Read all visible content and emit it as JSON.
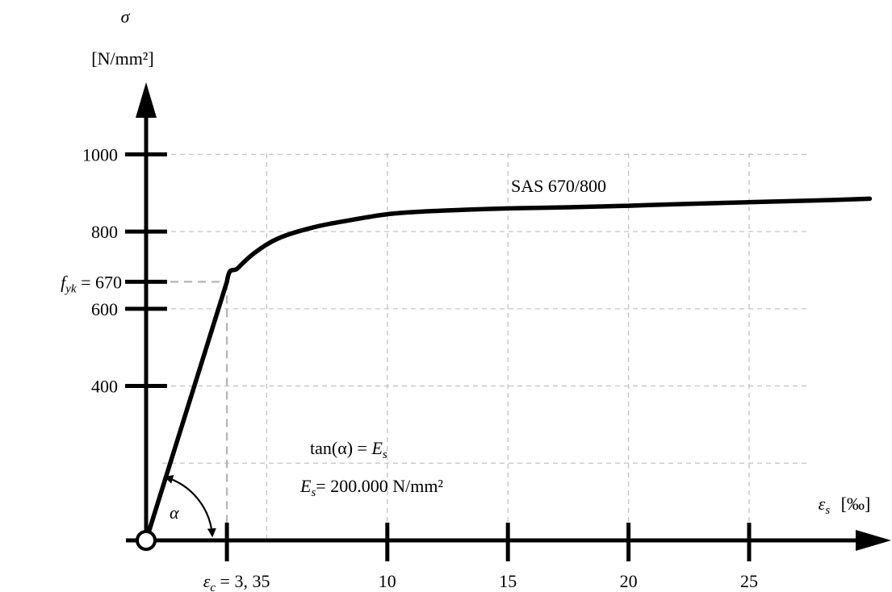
{
  "chart_data": {
    "type": "line",
    "y_axis": {
      "symbol": "σ",
      "unit": "[N/mm²]",
      "ticks": [
        400,
        600,
        800,
        1000
      ],
      "tick_labels": [
        "400",
        "600",
        "800",
        "1000"
      ],
      "highlight_value": 670,
      "highlight_label": "f_yk = 670",
      "range": [
        0,
        1000
      ]
    },
    "x_axis": {
      "symbol": "ε_s",
      "unit": "[‰]",
      "ticks": [
        3.35,
        10,
        15,
        20,
        25
      ],
      "tick_labels": [
        "ε_c = 3, 35",
        "10",
        "15",
        "20",
        "25"
      ],
      "range": [
        0,
        30
      ]
    },
    "grid": true,
    "series": [
      {
        "name": "SAS 670/800",
        "x": [
          0,
          3.35,
          3.8,
          4.5,
          5.5,
          7,
          8.5,
          10,
          11.5,
          13.5,
          15,
          17.5,
          20,
          22.5,
          25,
          27.5,
          30
        ],
        "y": [
          0,
          670,
          705,
          745,
          783,
          812,
          830,
          845,
          852,
          857,
          860,
          863,
          867,
          872,
          876,
          880,
          885
        ]
      }
    ],
    "annotations": {
      "angle_symbol": "α",
      "tangent_relation": "tan(α) = E_s",
      "modulus": "E_s= 200.000 N/mm²"
    }
  }
}
